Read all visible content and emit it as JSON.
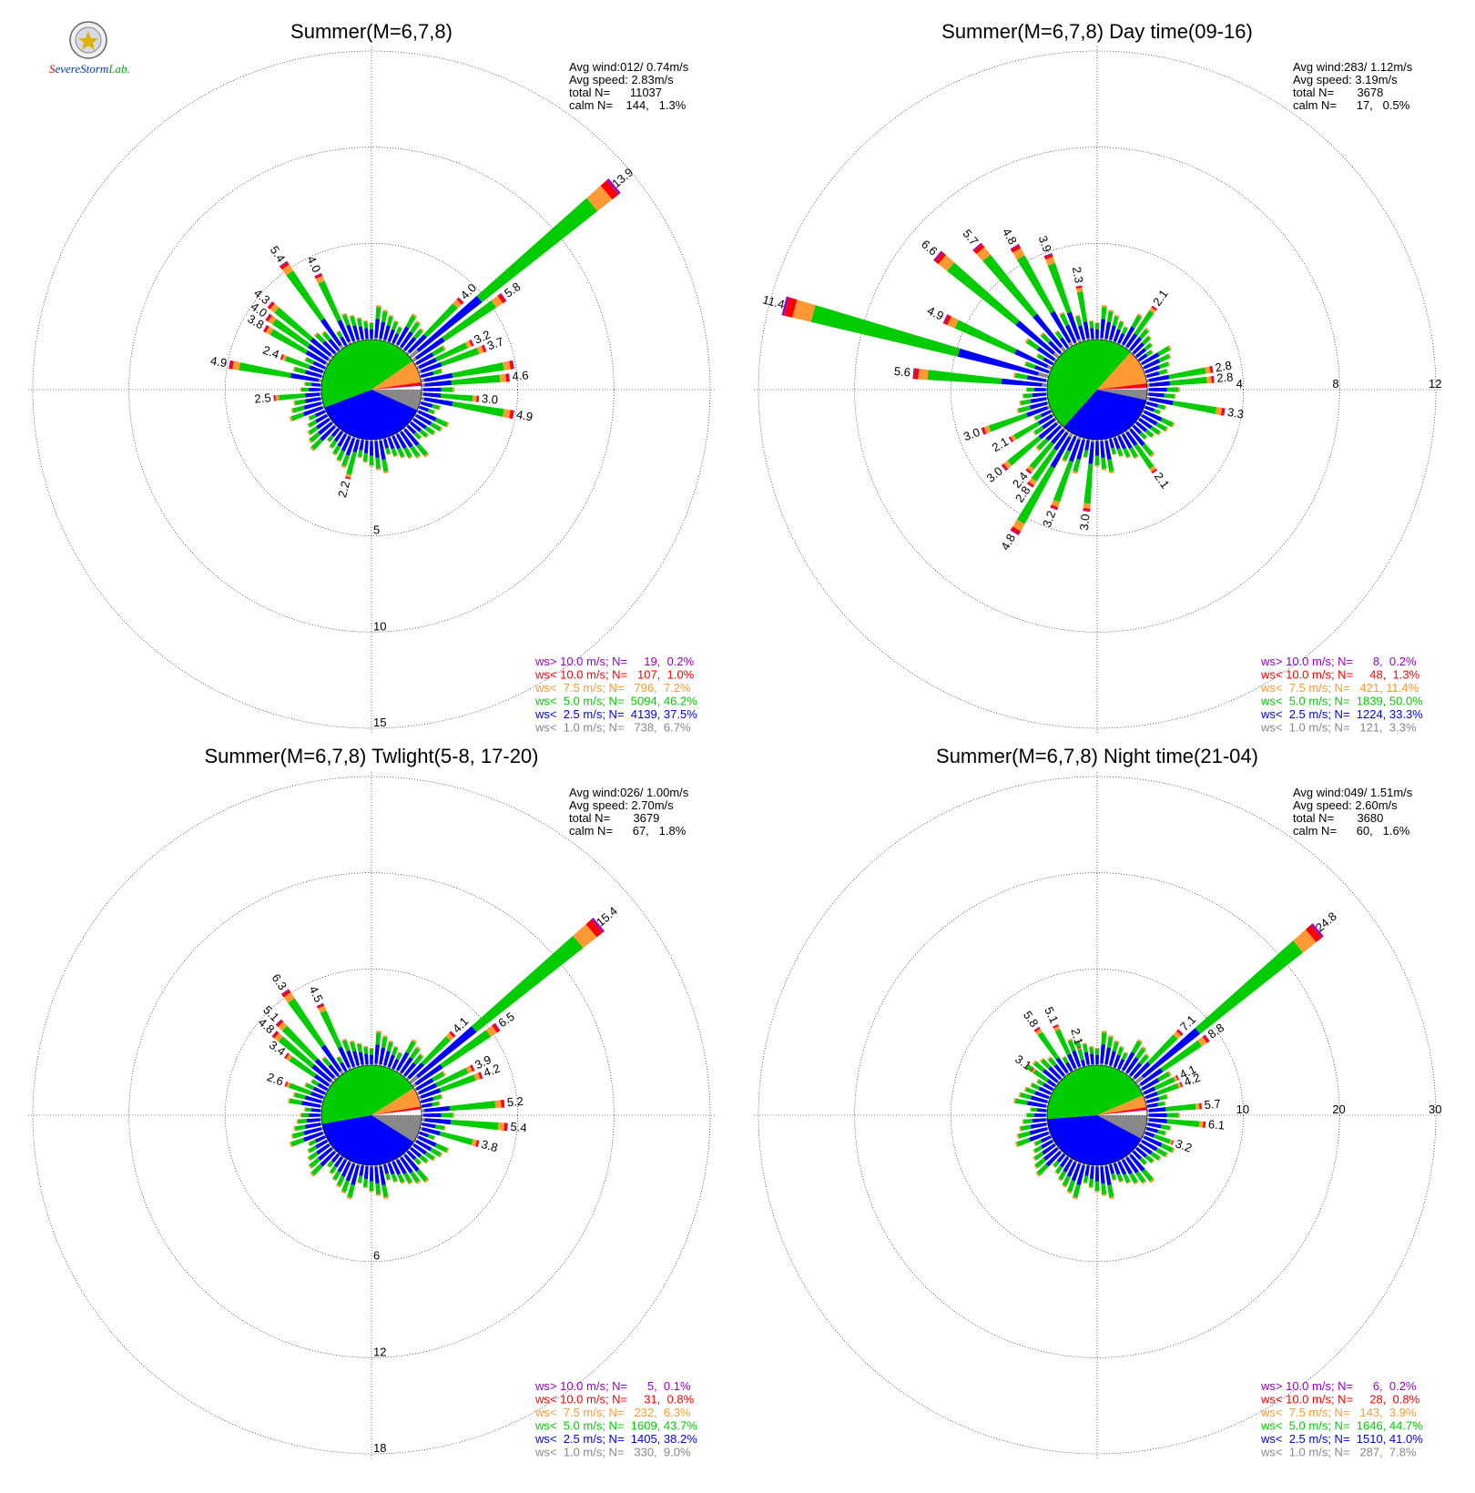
{
  "logo": {
    "text": "SevereStorm Lab."
  },
  "colors": {
    "gt10": "#9900cc",
    "lt10": "#ff0000",
    "lt75": "#ff9933",
    "lt5": "#00cc00",
    "lt25": "#0000ff",
    "lt1": "#888888"
  },
  "chart_data": [
    {
      "type": "polar-bar",
      "title": "Summer(M=6,7,8)",
      "info": [
        "Avg wind:012/ 0.74m/s",
        "Avg speed: 2.83m/s",
        "total N=      11037",
        "calm N=    144,   1.3%"
      ],
      "rings": [
        5,
        10,
        15
      ],
      "ring_label_side": "south",
      "legend": [
        "ws> 10.0 m/s; N=     19,  0.2%",
        "ws< 10.0 m/s; N=   107,  1.0%",
        "ws<  7.5 m/s; N=   796,  7.2%",
        "ws<  5.0 m/s; N=  5094, 46.2%",
        "ws<  2.5 m/s; N=  4139, 37.5%",
        "ws<  1.0 m/s; N=   738,  6.7%"
      ],
      "pie": [
        6.7,
        37.5,
        46.2,
        7.2,
        1.0,
        0.2
      ],
      "bars": [
        [
          80,
          4.9
        ],
        [
          85,
          4.6
        ],
        [
          95,
          3.0
        ],
        [
          100,
          4.9
        ],
        [
          70,
          3.7
        ],
        [
          65,
          3.2
        ],
        [
          55,
          5.8
        ],
        [
          45,
          4.0
        ],
        [
          50,
          13.9
        ],
        [
          195,
          2.2
        ],
        [
          265,
          2.5
        ],
        [
          280,
          4.9
        ],
        [
          290,
          2.4
        ],
        [
          300,
          3.8
        ],
        [
          305,
          4.0
        ],
        [
          310,
          4.3
        ],
        [
          325,
          5.4
        ],
        [
          335,
          4.0
        ]
      ],
      "labels": [
        [
          50,
          "13.9"
        ],
        [
          55,
          "5.8"
        ],
        [
          45,
          "4.0"
        ],
        [
          65,
          "3.2"
        ],
        [
          70,
          "3.7"
        ],
        [
          85,
          "4.6"
        ],
        [
          100,
          "4.9"
        ],
        [
          95,
          "3.0"
        ],
        [
          195,
          "2.2"
        ],
        [
          265,
          "2.5"
        ],
        [
          280,
          "4.9"
        ],
        [
          290,
          "2.4"
        ],
        [
          300,
          "3.8"
        ],
        [
          305,
          "4.0"
        ],
        [
          310,
          "4.3"
        ],
        [
          325,
          "5.4"
        ],
        [
          335,
          "4.0"
        ]
      ]
    },
    {
      "type": "polar-bar",
      "title": "Summer(M=6,7,8) Day time(09-16)",
      "info": [
        "Avg wind:283/ 1.12m/s",
        "Avg speed: 3.19m/s",
        "total N=       3678",
        "calm N=      17,   0.5%"
      ],
      "rings": [
        4,
        8,
        12
      ],
      "ring_label_side": "east",
      "legend": [
        "ws> 10.0 m/s; N=      8,  0.2%",
        "ws< 10.0 m/s; N=     48,  1.3%",
        "ws<  7.5 m/s; N=   421, 11.4%",
        "ws<  5.0 m/s; N=  1839, 50.0%",
        "ws<  2.5 m/s; N=  1224, 33.3%",
        "ws<  1.0 m/s; N=   121,  3.3%"
      ],
      "pie": [
        3.3,
        33.3,
        50.0,
        11.4,
        1.3,
        0.2
      ],
      "bars": [
        [
          285,
          11.4
        ],
        [
          275,
          5.6
        ],
        [
          295,
          4.9
        ],
        [
          310,
          6.6
        ],
        [
          320,
          5.7
        ],
        [
          330,
          4.8
        ],
        [
          340,
          3.9
        ],
        [
          350,
          2.3
        ],
        [
          35,
          2.1
        ],
        [
          80,
          2.8
        ],
        [
          85,
          2.8
        ],
        [
          100,
          3.3
        ],
        [
          145,
          2.1
        ],
        [
          185,
          3.0
        ],
        [
          200,
          3.2
        ],
        [
          210,
          4.8
        ],
        [
          215,
          2.8
        ],
        [
          220,
          2.4
        ],
        [
          230,
          3.0
        ],
        [
          240,
          2.1
        ],
        [
          250,
          3.0
        ]
      ],
      "labels": [
        [
          285,
          "11.4"
        ],
        [
          275,
          "5.6"
        ],
        [
          295,
          "4.9"
        ],
        [
          310,
          "6.6"
        ],
        [
          320,
          "5.7"
        ],
        [
          330,
          "4.8"
        ],
        [
          340,
          "3.9"
        ],
        [
          350,
          "2.3"
        ],
        [
          35,
          "2.1"
        ],
        [
          80,
          "2.8"
        ],
        [
          85,
          "2.8"
        ],
        [
          100,
          "3.3"
        ],
        [
          145,
          "2.1"
        ],
        [
          185,
          "3.0"
        ],
        [
          200,
          "3.2"
        ],
        [
          210,
          "4.8"
        ],
        [
          215,
          "2.8"
        ],
        [
          220,
          "2.4"
        ],
        [
          230,
          "3.0"
        ],
        [
          240,
          "2.1"
        ],
        [
          250,
          "3.0"
        ]
      ]
    },
    {
      "type": "polar-bar",
      "title": "Summer(M=6,7,8) Twlight(5-8, 17-20)",
      "info": [
        "Avg wind:026/ 1.00m/s",
        "Avg speed: 2.70m/s",
        "total N=       3679",
        "calm N=      67,   1.8%"
      ],
      "rings": [
        6,
        12,
        18
      ],
      "ring_label_side": "south",
      "legend": [
        "ws> 10.0 m/s; N=      5,  0.1%",
        "ws< 10.0 m/s; N=     31,  0.8%",
        "ws<  7.5 m/s; N=   232,  6.3%",
        "ws<  5.0 m/s; N=  1609, 43.7%",
        "ws<  2.5 m/s; N=  1405, 38.2%",
        "ws<  1.0 m/s; N=   330,  9.0%"
      ],
      "pie": [
        9.0,
        38.2,
        43.7,
        6.3,
        0.8,
        0.1
      ],
      "bars": [
        [
          50,
          15.4
        ],
        [
          55,
          6.5
        ],
        [
          45,
          4.1
        ],
        [
          65,
          3.9
        ],
        [
          70,
          4.2
        ],
        [
          85,
          5.2
        ],
        [
          95,
          5.4
        ],
        [
          105,
          3.8
        ],
        [
          290,
          2.6
        ],
        [
          305,
          3.4
        ],
        [
          310,
          4.8
        ],
        [
          315,
          5.1
        ],
        [
          325,
          6.3
        ],
        [
          335,
          4.5
        ]
      ],
      "labels": [
        [
          50,
          "15.4"
        ],
        [
          55,
          "6.5"
        ],
        [
          45,
          "4.1"
        ],
        [
          65,
          "3.9"
        ],
        [
          70,
          "4.2"
        ],
        [
          85,
          "5.2"
        ],
        [
          95,
          "5.4"
        ],
        [
          105,
          "3.8"
        ],
        [
          290,
          "2.6"
        ],
        [
          305,
          "3.4"
        ],
        [
          310,
          "4.8"
        ],
        [
          315,
          "5.1"
        ],
        [
          325,
          "6.3"
        ],
        [
          335,
          "4.5"
        ]
      ]
    },
    {
      "type": "polar-bar",
      "title": "Summer(M=6,7,8) Night time(21-04)",
      "info": [
        "Avg wind:049/ 1.51m/s",
        "Avg speed: 2.60m/s",
        "total N=       3680",
        "calm N=      60,   1.6%"
      ],
      "rings": [
        10,
        20,
        30
      ],
      "ring_label_side": "east",
      "legend": [
        "ws> 10.0 m/s; N=      6,  0.2%",
        "ws< 10.0 m/s; N=     28,  0.8%",
        "ws<  7.5 m/s; N=   143,  3.9%",
        "ws<  5.0 m/s; N=  1646, 44.7%",
        "ws<  2.5 m/s; N=  1510, 41.0%",
        "ws<  1.0 m/s; N=   287,  7.8%"
      ],
      "pie": [
        7.8,
        41.0,
        44.7,
        3.9,
        0.8,
        0.2
      ],
      "bars": [
        [
          50,
          24.8
        ],
        [
          55,
          8.8
        ],
        [
          45,
          7.1
        ],
        [
          65,
          4.1
        ],
        [
          70,
          4.2
        ],
        [
          85,
          5.7
        ],
        [
          95,
          6.1
        ],
        [
          110,
          3.2
        ],
        [
          305,
          3.1
        ],
        [
          325,
          5.8
        ],
        [
          335,
          5.1
        ],
        [
          345,
          2.1
        ]
      ],
      "labels": [
        [
          50,
          "24.8"
        ],
        [
          55,
          "8.8"
        ],
        [
          45,
          "7.1"
        ],
        [
          65,
          "4.1"
        ],
        [
          70,
          "4.2"
        ],
        [
          85,
          "5.7"
        ],
        [
          95,
          "6.1"
        ],
        [
          110,
          "3.2"
        ],
        [
          305,
          "3.1"
        ],
        [
          325,
          "5.8"
        ],
        [
          335,
          "5.1"
        ],
        [
          345,
          "2.1"
        ]
      ]
    }
  ]
}
